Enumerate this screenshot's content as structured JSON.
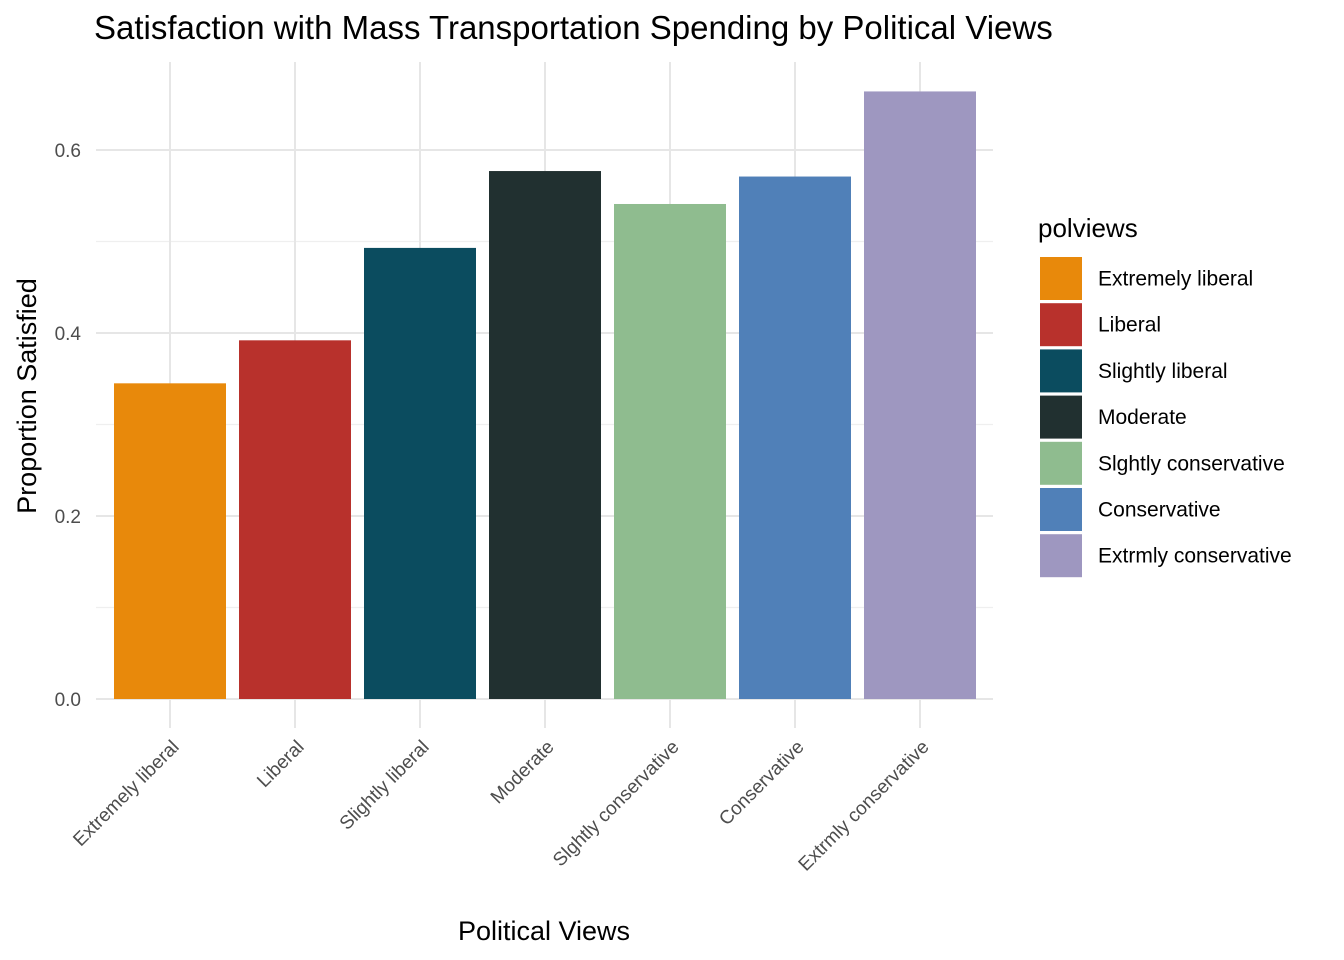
{
  "chart_data": {
    "type": "bar",
    "title": "Satisfaction with Mass Transportation Spending by Political Views",
    "xlabel": "Political Views",
    "ylabel": "Proportion Satisfied",
    "categories": [
      "Extremely liberal",
      "Liberal",
      "Slightly liberal",
      "Moderate",
      "Slghtly conservative",
      "Conservative",
      "Extrmly conservative"
    ],
    "values": [
      0.345,
      0.392,
      0.493,
      0.577,
      0.541,
      0.571,
      0.664
    ],
    "colors": [
      "#E8890B",
      "#B8312C",
      "#0B4C5F",
      "#213030",
      "#8FBC8F",
      "#5080B8",
      "#9E97C0"
    ],
    "ylim": [
      0,
      0.7
    ],
    "yticks": [
      0.0,
      0.2,
      0.4,
      0.6
    ],
    "ytick_labels": [
      "0.0",
      "0.2",
      "0.4",
      "0.6"
    ],
    "grid": true,
    "legend": {
      "title": "polviews",
      "placement": "right",
      "entries": [
        "Extremely liberal",
        "Liberal",
        "Slightly liberal",
        "Moderate",
        "Slghtly conservative",
        "Conservative",
        "Extrmly conservative"
      ]
    }
  }
}
